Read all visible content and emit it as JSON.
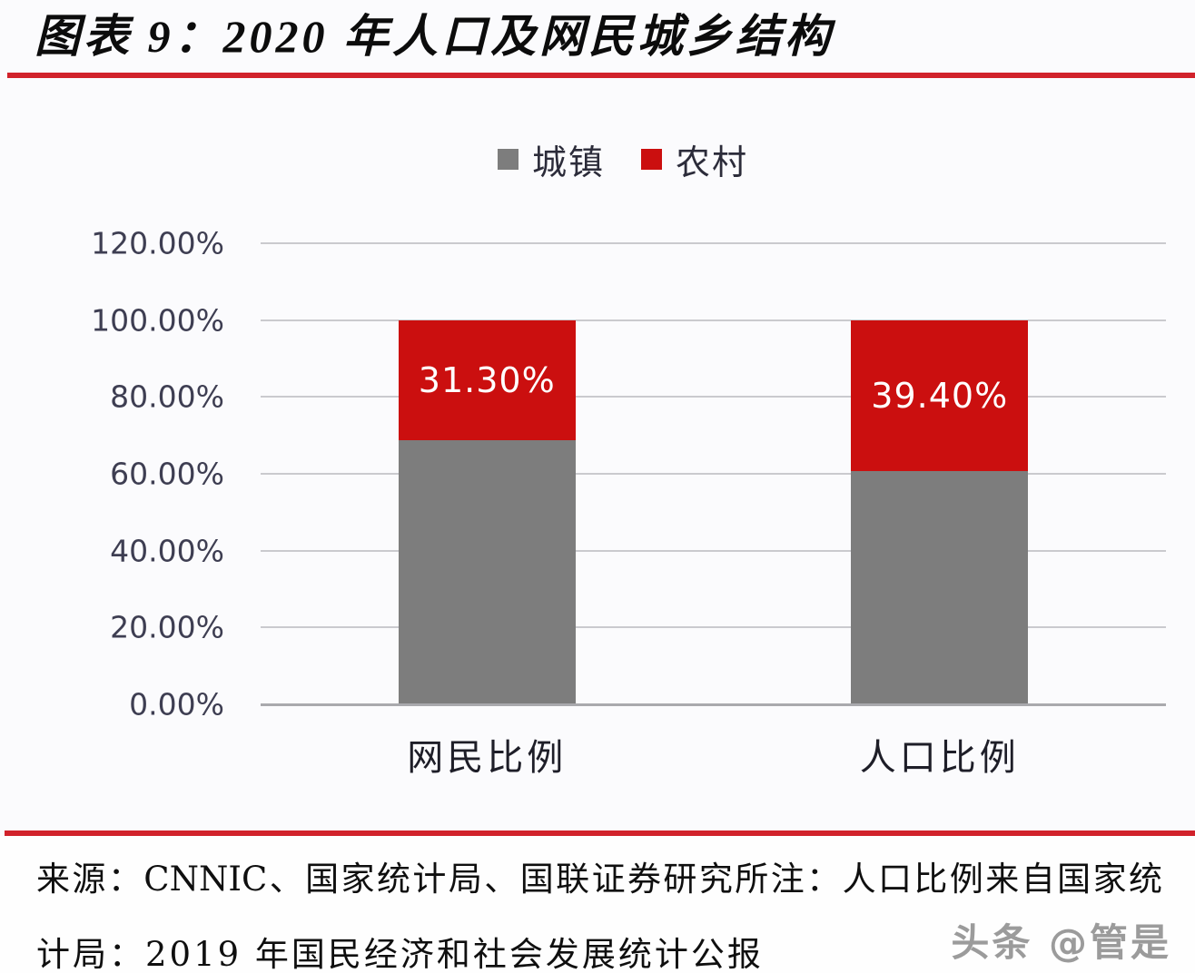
{
  "header": {
    "title": "图表 9：2020 年人口及网民城乡结构"
  },
  "chart_data": {
    "type": "bar",
    "stacked": true,
    "title": "图表 9：2020 年人口及网民城乡结构",
    "categories": [
      "网民比例",
      "人口比例"
    ],
    "series": [
      {
        "name": "城镇",
        "color": "#7d7d7d",
        "values": [
          68.7,
          60.6
        ],
        "data_labels": [
          "",
          ""
        ]
      },
      {
        "name": "农村",
        "color": "#cb0f0f",
        "values": [
          31.3,
          39.4
        ],
        "data_labels": [
          "31.30%",
          "39.40%"
        ]
      }
    ],
    "ylim": [
      0,
      120
    ],
    "y_ticks": [
      "120.00%",
      "100.00%",
      "80.00%",
      "60.00%",
      "40.00%",
      "20.00%",
      "0.00%"
    ],
    "grid": true,
    "legend_position": "top-center"
  },
  "footer": {
    "source_line_1": "来源：CNNIC、国家统计局、国联证券研究所注：人口比例来自国家统",
    "source_line_2": "计局：2019 年国民经济和社会发展统计公报",
    "watermark": "头条 @管是"
  },
  "colors": {
    "accent_rule": "#d1222b",
    "urban_gray": "#7d7d7d",
    "rural_red": "#cb0f0f",
    "tick_text": "#3e3e52",
    "gridline": "#cacace"
  }
}
